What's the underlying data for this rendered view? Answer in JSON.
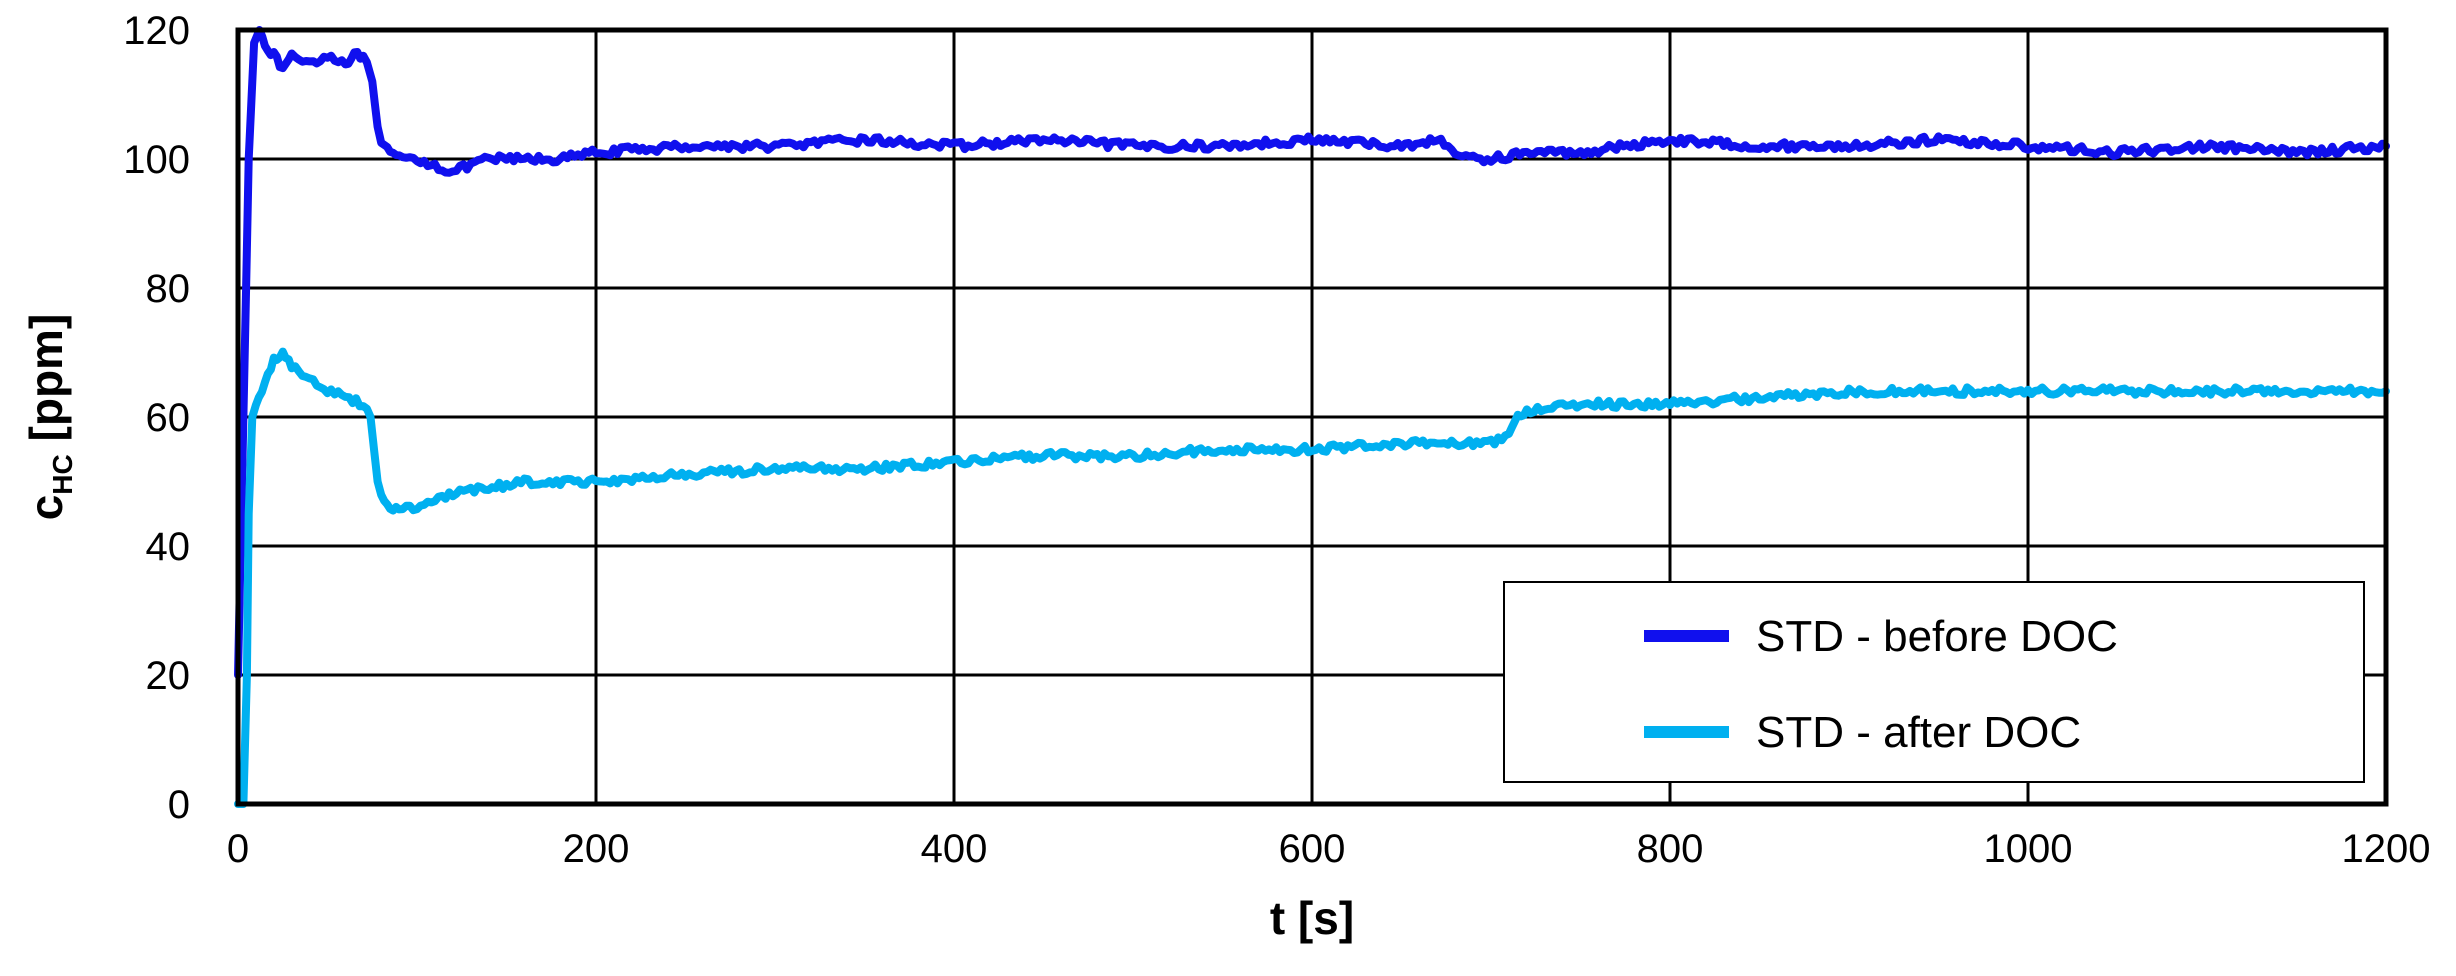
{
  "chart_data": {
    "type": "line",
    "title": "",
    "xlabel": "t [s]",
    "ylabel_main": "c",
    "ylabel_sub": "HC",
    "ylabel_unit": " [ppm]",
    "xlim": [
      0,
      1200
    ],
    "ylim": [
      0,
      120
    ],
    "xticks": [
      0,
      200,
      400,
      600,
      800,
      1000,
      1200
    ],
    "yticks": [
      0,
      20,
      40,
      60,
      80,
      100,
      120
    ],
    "grid": true,
    "legend_position": "bottom-right",
    "series": [
      {
        "name": "STD - before DOC",
        "color": "#1010ee",
        "x": [
          0,
          3,
          6,
          9,
          12,
          15,
          20,
          25,
          30,
          40,
          50,
          60,
          65,
          70,
          72,
          75,
          78,
          80,
          85,
          90,
          100,
          110,
          120,
          130,
          140,
          160,
          180,
          200,
          250,
          300,
          350,
          400,
          450,
          500,
          550,
          600,
          650,
          670,
          680,
          690,
          700,
          720,
          750,
          800,
          850,
          900,
          950,
          1000,
          1050,
          1100,
          1150,
          1200
        ],
        "y": [
          20,
          60,
          100,
          118,
          120,
          118,
          116,
          114,
          116,
          115,
          116,
          115,
          116,
          116,
          115,
          112,
          105,
          102,
          101,
          100,
          100,
          99,
          98,
          99,
          100,
          100,
          100,
          101,
          102,
          102,
          103,
          102,
          103,
          102,
          102,
          103,
          102,
          103,
          101,
          100,
          100,
          101,
          101,
          103,
          102,
          102,
          103,
          102,
          101,
          102,
          101,
          102
        ]
      },
      {
        "name": "STD - after DOC",
        "color": "#00b0f0",
        "x": [
          0,
          3,
          5,
          6,
          8,
          10,
          15,
          20,
          25,
          30,
          40,
          50,
          60,
          70,
          74,
          76,
          78,
          80,
          85,
          90,
          100,
          110,
          120,
          140,
          160,
          180,
          200,
          250,
          300,
          350,
          400,
          450,
          500,
          550,
          600,
          650,
          700,
          710,
          715,
          720,
          740,
          760,
          800,
          850,
          900,
          950,
          1000,
          1050,
          1100,
          1150,
          1200
        ],
        "y": [
          0,
          0,
          20,
          45,
          60,
          62,
          65,
          69,
          70,
          68,
          66,
          64,
          63,
          62,
          60,
          55,
          50,
          48,
          46,
          46,
          46,
          47,
          48,
          49,
          50,
          50,
          50,
          51,
          52,
          52,
          53,
          54,
          54,
          55,
          55,
          56,
          56,
          57,
          60,
          61,
          62,
          62,
          62,
          63,
          64,
          64,
          64,
          64,
          64,
          64,
          64
        ]
      }
    ]
  }
}
